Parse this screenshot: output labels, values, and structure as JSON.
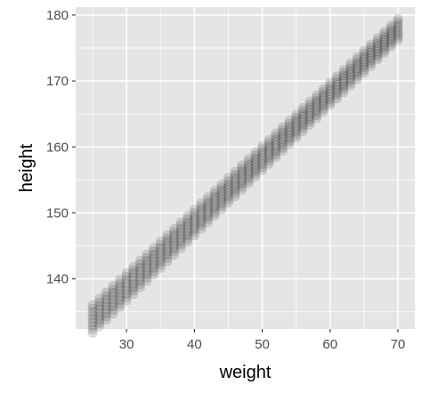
{
  "chart_data": {
    "type": "scatter",
    "title": "",
    "xlabel": "weight",
    "ylabel": "height",
    "xlim": [
      22.5,
      72.5
    ],
    "ylim": [
      132.4,
      181.2
    ],
    "x_ticks": [
      30,
      40,
      50,
      60,
      70
    ],
    "x_tick_labels": [
      "30",
      "40",
      "50",
      "60",
      "70"
    ],
    "y_ticks": [
      140,
      150,
      160,
      170,
      180
    ],
    "y_tick_labels": [
      "140",
      "150",
      "160",
      "170",
      "180"
    ],
    "x_minor_ticks": [
      25,
      35,
      45,
      55,
      65
    ],
    "y_minor_ticks": [
      135,
      145,
      155,
      165,
      175
    ],
    "grid": true,
    "theme": "ggplot-gray",
    "panel_background": "#e5e5e5",
    "grid_color": "#ffffff",
    "point_color": "#000000",
    "point_alpha": 0.12,
    "series": [
      {
        "x_range": [
          25,
          70
        ],
        "x_step": 1,
        "y_line": {
          "intercept": 110,
          "slope": 0.96
        },
        "y_spread_low": [
          -2.2,
          -1.0
        ],
        "y_spread_high": [
          2.0,
          2.2
        ],
        "points_per_x": 9
      }
    ]
  }
}
